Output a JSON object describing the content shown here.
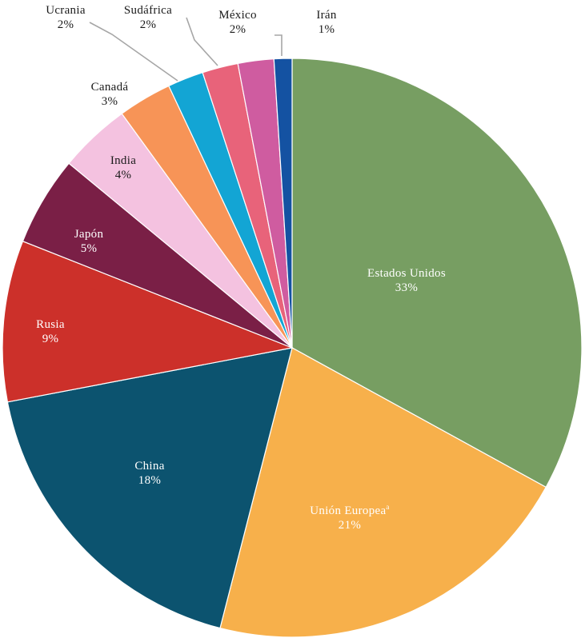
{
  "chart_data": {
    "type": "pie",
    "title": "",
    "slices": [
      {
        "label": "Estados Unidos",
        "value": 33,
        "pct": "33%",
        "color": "#779e62"
      },
      {
        "label": "Unión Europea",
        "sup": "a",
        "value": 21,
        "pct": "21%",
        "color": "#f7b04b"
      },
      {
        "label": "China",
        "value": 18,
        "pct": "18%",
        "color": "#0c536f"
      },
      {
        "label": "Rusia",
        "value": 9,
        "pct": "9%",
        "color": "#cc302a"
      },
      {
        "label": "Japón",
        "value": 5,
        "pct": "5%",
        "color": "#7a1f46"
      },
      {
        "label": "India",
        "value": 4,
        "pct": "4%",
        "color": "#f4c2e0"
      },
      {
        "label": "Canadá",
        "value": 3,
        "pct": "3%",
        "color": "#f79457"
      },
      {
        "label": "Ucrania",
        "value": 2,
        "pct": "2%",
        "color": "#13a5d4"
      },
      {
        "label": "Sudáfrica",
        "value": 2,
        "pct": "2%",
        "color": "#e8637a"
      },
      {
        "label": "México",
        "value": 2,
        "pct": "2%",
        "color": "#cf5ca0"
      },
      {
        "label": "Irán",
        "value": 1,
        "pct": "1%",
        "color": "#1452a2"
      }
    ],
    "legend": "none",
    "labels": "data labels with category name and percentage"
  }
}
